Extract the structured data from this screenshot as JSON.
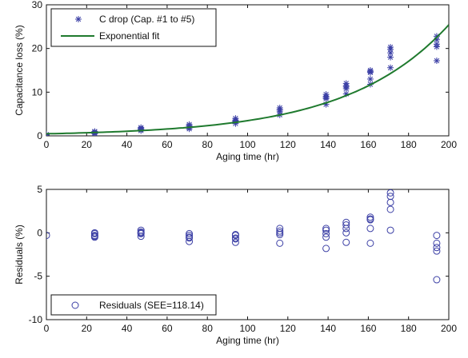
{
  "colors": {
    "marker": "#3b3fa5",
    "fit": "#1f7a2e",
    "axis": "#111111"
  },
  "chart_data": [
    {
      "type": "scatter",
      "xlabel": "Aging time (hr)",
      "ylabel": "Capacitance loss (%)",
      "xlim": [
        0,
        200
      ],
      "ylim": [
        0,
        30
      ],
      "xticks": [
        0,
        20,
        40,
        60,
        80,
        100,
        120,
        140,
        160,
        180,
        200
      ],
      "yticks": [
        0,
        10,
        20,
        30
      ],
      "legend": {
        "placement": "top-left",
        "entries": [
          "C drop (Cap. #1 to #5)",
          "Exponential fit"
        ]
      },
      "series": [
        {
          "name": "C drop (Cap. #1 to #5)",
          "marker": "asterisk",
          "points": [
            [
              0,
              0.2
            ],
            [
              0,
              0.3
            ],
            [
              24,
              0.5
            ],
            [
              24,
              0.7
            ],
            [
              24,
              0.9
            ],
            [
              24,
              1.0
            ],
            [
              24,
              0.6
            ],
            [
              47,
              1.2
            ],
            [
              47,
              1.5
            ],
            [
              47,
              1.7
            ],
            [
              47,
              1.9
            ],
            [
              47,
              1.4
            ],
            [
              71,
              1.6
            ],
            [
              71,
              2.0
            ],
            [
              71,
              2.3
            ],
            [
              71,
              2.6
            ],
            [
              71,
              1.9
            ],
            [
              94,
              2.8
            ],
            [
              94,
              3.2
            ],
            [
              94,
              3.6
            ],
            [
              94,
              4.0
            ],
            [
              94,
              3.4
            ],
            [
              116,
              4.8
            ],
            [
              116,
              5.5
            ],
            [
              116,
              6.0
            ],
            [
              116,
              6.4
            ],
            [
              116,
              5.9
            ],
            [
              139,
              7.2
            ],
            [
              139,
              8.5
            ],
            [
              139,
              9.0
            ],
            [
              139,
              9.5
            ],
            [
              139,
              8.8
            ],
            [
              149,
              9.6
            ],
            [
              149,
              10.8
            ],
            [
              149,
              11.5
            ],
            [
              149,
              12.0
            ],
            [
              149,
              11.2
            ],
            [
              161,
              11.8
            ],
            [
              161,
              13.0
            ],
            [
              161,
              14.5
            ],
            [
              161,
              15.0
            ],
            [
              161,
              14.7
            ],
            [
              171,
              15.6
            ],
            [
              171,
              18.0
            ],
            [
              171,
              19.0
            ],
            [
              171,
              19.8
            ],
            [
              171,
              20.3
            ],
            [
              194,
              17.2
            ],
            [
              194,
              20.4
            ],
            [
              194,
              21.0
            ],
            [
              194,
              22.0
            ],
            [
              194,
              22.8
            ]
          ]
        },
        {
          "name": "Exponential fit",
          "marker": "line",
          "fit": {
            "a": 0.475,
            "b": 0.0199
          }
        }
      ]
    },
    {
      "type": "scatter",
      "xlabel": "Aging time (hr)",
      "ylabel": "Residuals (%)",
      "xlim": [
        0,
        200
      ],
      "ylim": [
        -10,
        5
      ],
      "xticks": [
        0,
        20,
        40,
        60,
        80,
        100,
        120,
        140,
        160,
        180,
        200
      ],
      "yticks": [
        -10,
        -5,
        0,
        5
      ],
      "legend": {
        "placement": "bottom-left",
        "entries": [
          "Residuals (SEE=118.14)"
        ]
      },
      "series": [
        {
          "name": "Residuals (SEE=118.14)",
          "marker": "circle",
          "points": [
            [
              0,
              -0.3
            ],
            [
              24,
              -0.5
            ],
            [
              24,
              -0.3
            ],
            [
              24,
              -0.1
            ],
            [
              24,
              0.0
            ],
            [
              24,
              -0.4
            ],
            [
              47,
              -0.4
            ],
            [
              47,
              -0.1
            ],
            [
              47,
              0.1
            ],
            [
              47,
              0.3
            ],
            [
              47,
              0.0
            ],
            [
              71,
              -1.0
            ],
            [
              71,
              -0.6
            ],
            [
              71,
              -0.3
            ],
            [
              71,
              -0.1
            ],
            [
              71,
              -0.5
            ],
            [
              94,
              -1.1
            ],
            [
              94,
              -0.7
            ],
            [
              94,
              -0.3
            ],
            [
              94,
              -0.2
            ],
            [
              94,
              -0.6
            ],
            [
              116,
              -1.2
            ],
            [
              116,
              -0.2
            ],
            [
              116,
              0.2
            ],
            [
              116,
              0.5
            ],
            [
              116,
              0.0
            ],
            [
              139,
              -1.8
            ],
            [
              139,
              -0.5
            ],
            [
              139,
              -0.1
            ],
            [
              139,
              0.3
            ],
            [
              139,
              0.5
            ],
            [
              149,
              -1.1
            ],
            [
              149,
              0.0
            ],
            [
              149,
              0.5
            ],
            [
              149,
              0.9
            ],
            [
              149,
              1.2
            ],
            [
              161,
              -1.2
            ],
            [
              161,
              0.5
            ],
            [
              161,
              1.5
            ],
            [
              161,
              1.8
            ],
            [
              161,
              1.6
            ],
            [
              171,
              0.3
            ],
            [
              171,
              2.7
            ],
            [
              171,
              3.5
            ],
            [
              171,
              4.2
            ],
            [
              171,
              4.6
            ],
            [
              194,
              -5.4
            ],
            [
              194,
              -2.1
            ],
            [
              194,
              -1.7
            ],
            [
              194,
              -1.2
            ],
            [
              194,
              -0.3
            ]
          ]
        }
      ]
    }
  ]
}
